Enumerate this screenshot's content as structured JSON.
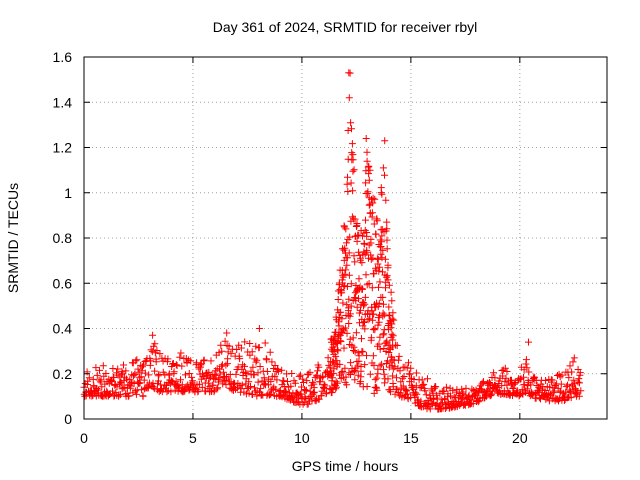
{
  "chart_data": {
    "type": "scatter",
    "title": "Day 361 of 2024, SRMTID for receiver rbyl",
    "xlabel": "GPS time / hours",
    "ylabel": "SRMTID / TECUs",
    "xlim": [
      0,
      24
    ],
    "ylim": [
      0,
      1.6
    ],
    "xticks": [
      0,
      5,
      10,
      15,
      20
    ],
    "xtick_labels": [
      "0",
      "5",
      "10",
      "15",
      "20"
    ],
    "yticks": [
      0,
      0.2,
      0.4,
      0.6,
      0.8,
      1.0,
      1.2,
      1.4,
      1.6
    ],
    "ytick_labels": [
      "0",
      "0.2",
      "0.4",
      "0.6",
      "0.8",
      "1",
      "1.2",
      "1.4",
      "1.6"
    ],
    "grid": true,
    "marker": "plus",
    "marker_color": "#ff0000",
    "series": [
      {
        "name": "SRMTID",
        "envelope": {
          "x": [
            0,
            1,
            2,
            3,
            3.2,
            4,
            4.5,
            5,
            6,
            6.5,
            7,
            8,
            9,
            10,
            10.5,
            11,
            11.5,
            11.8,
            12,
            12.2,
            12.5,
            12.8,
            13,
            13.5,
            13.8,
            14,
            14.5,
            15,
            15.5,
            16,
            17,
            18,
            18.5,
            19,
            20,
            20.3,
            20.5,
            21,
            21.5,
            22,
            22.5,
            22.8
          ],
          "lower": [
            0.1,
            0.1,
            0.1,
            0.1,
            0.12,
            0.12,
            0.12,
            0.12,
            0.12,
            0.14,
            0.12,
            0.1,
            0.1,
            0.06,
            0.07,
            0.1,
            0.12,
            0.14,
            0.15,
            0.15,
            0.15,
            0.14,
            0.1,
            0.12,
            0.14,
            0.12,
            0.1,
            0.08,
            0.05,
            0.04,
            0.05,
            0.07,
            0.1,
            0.11,
            0.1,
            0.12,
            0.1,
            0.08,
            0.08,
            0.08,
            0.1,
            0.1
          ],
          "upper": [
            0.22,
            0.24,
            0.25,
            0.28,
            0.37,
            0.24,
            0.3,
            0.25,
            0.3,
            0.38,
            0.32,
            0.4,
            0.22,
            0.2,
            0.22,
            0.28,
            0.4,
            0.7,
            1.0,
            1.53,
            0.9,
            0.85,
            1.24,
            0.85,
            1.23,
            0.65,
            0.25,
            0.25,
            0.22,
            0.15,
            0.14,
            0.14,
            0.18,
            0.24,
            0.2,
            0.34,
            0.2,
            0.18,
            0.18,
            0.22,
            0.27,
            0.24
          ]
        },
        "peaks": [
          {
            "x": 3.15,
            "y": 0.37
          },
          {
            "x": 6.55,
            "y": 0.38
          },
          {
            "x": 8.05,
            "y": 0.4
          },
          {
            "x": 12.15,
            "y": 1.53
          },
          {
            "x": 12.95,
            "y": 1.24
          },
          {
            "x": 13.8,
            "y": 1.23
          },
          {
            "x": 20.4,
            "y": 0.34
          },
          {
            "x": 22.5,
            "y": 0.27
          }
        ]
      }
    ]
  }
}
